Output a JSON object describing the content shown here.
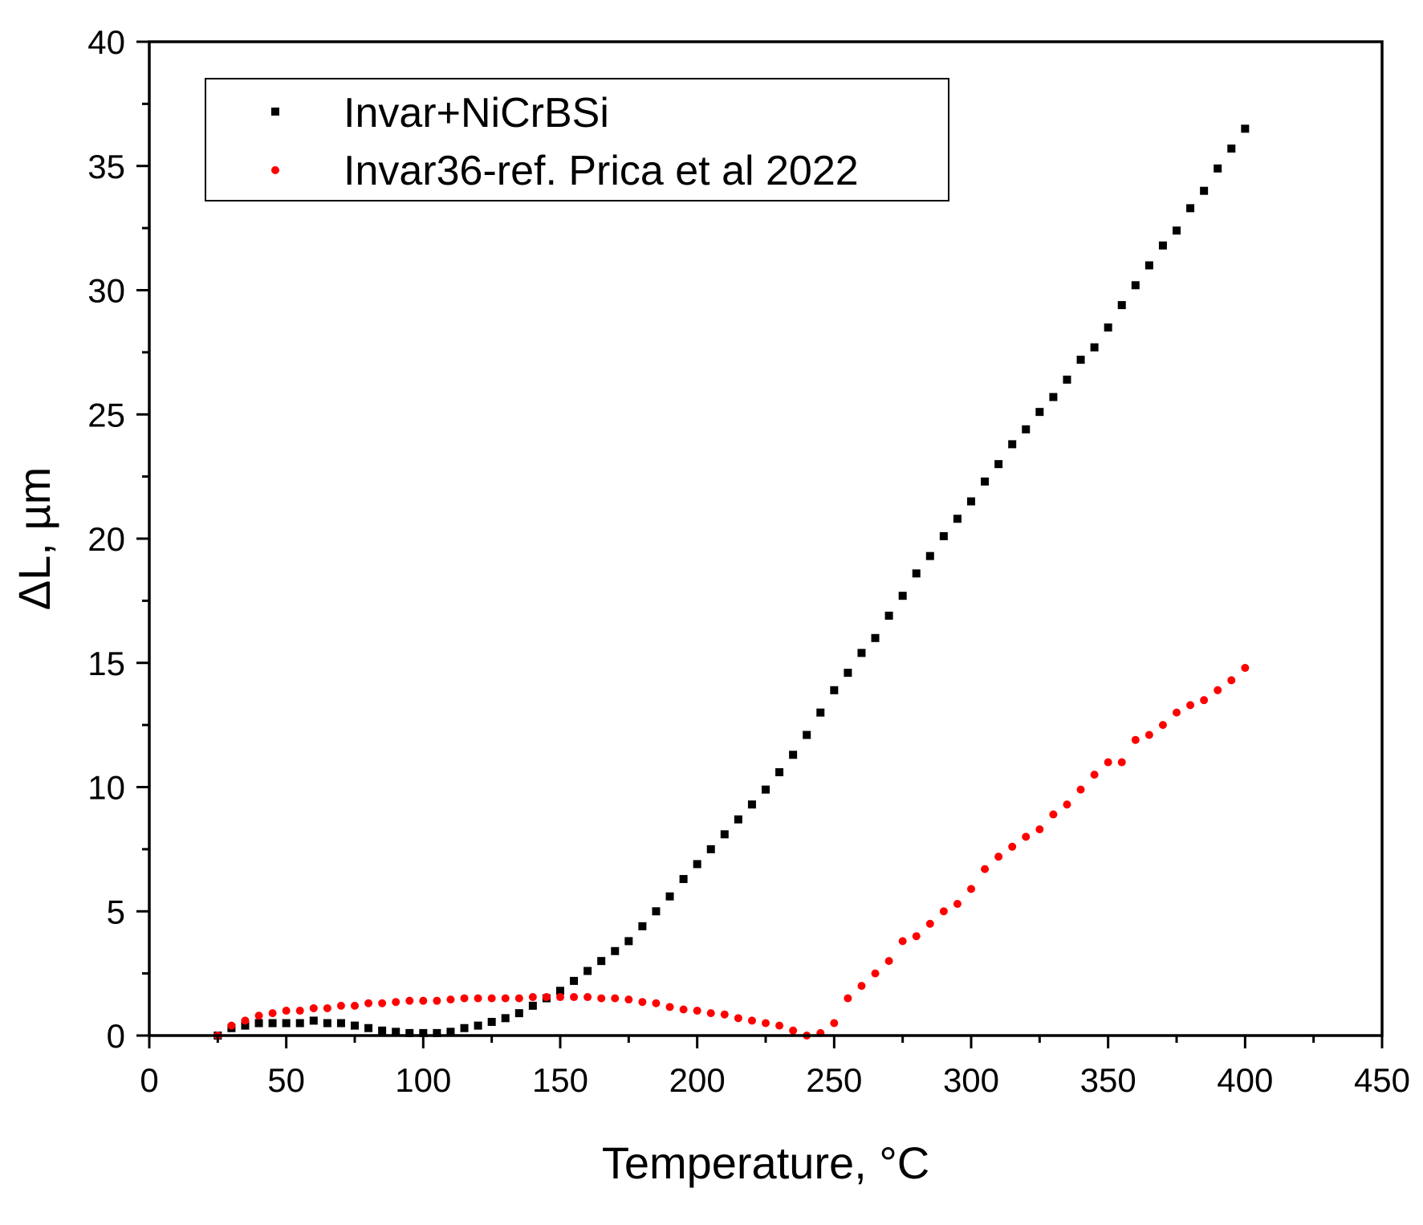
{
  "chart_data": {
    "type": "scatter",
    "title": "",
    "xlabel": "Temperature, °C",
    "ylabel": "ΔL, µm",
    "xlim": [
      0,
      450
    ],
    "ylim": [
      0,
      40
    ],
    "xticks": [
      0,
      50,
      100,
      150,
      200,
      250,
      300,
      350,
      400,
      450
    ],
    "yticks": [
      0,
      5,
      10,
      15,
      20,
      25,
      30,
      35,
      40
    ],
    "xtick_labels": [
      "0",
      "50",
      "100",
      "150",
      "200",
      "250",
      "300",
      "350",
      "400",
      "450"
    ],
    "ytick_labels": [
      "0",
      "5",
      "10",
      "15",
      "20",
      "25",
      "30",
      "35",
      "40"
    ],
    "grid": false,
    "legend_position": "top-left",
    "series": [
      {
        "name": "Invar+NiCrBSi",
        "color": "#000000",
        "marker": "square",
        "x": [
          25,
          30,
          35,
          40,
          45,
          50,
          55,
          60,
          65,
          70,
          75,
          80,
          85,
          90,
          95,
          100,
          105,
          110,
          115,
          120,
          125,
          130,
          135,
          140,
          145,
          150,
          155,
          160,
          165,
          170,
          175,
          180,
          185,
          190,
          195,
          200,
          205,
          210,
          215,
          220,
          225,
          230,
          235,
          240,
          245,
          250,
          255,
          260,
          265,
          270,
          275,
          280,
          285,
          290,
          295,
          300,
          305,
          310,
          315,
          320,
          325,
          330,
          335,
          340,
          345,
          350,
          355,
          360,
          365,
          370,
          375,
          380,
          385,
          390,
          395,
          400
        ],
        "y": [
          0.0,
          0.3,
          0.4,
          0.5,
          0.5,
          0.5,
          0.5,
          0.6,
          0.5,
          0.5,
          0.4,
          0.3,
          0.2,
          0.15,
          0.1,
          0.1,
          0.1,
          0.15,
          0.3,
          0.4,
          0.55,
          0.7,
          0.9,
          1.2,
          1.5,
          1.8,
          2.2,
          2.6,
          3.0,
          3.4,
          3.8,
          4.4,
          5.0,
          5.6,
          6.3,
          6.9,
          7.5,
          8.1,
          8.7,
          9.3,
          9.9,
          10.6,
          11.3,
          12.1,
          13.0,
          13.9,
          14.6,
          15.4,
          16.0,
          16.9,
          17.7,
          18.6,
          19.3,
          20.1,
          20.8,
          21.5,
          22.3,
          23.0,
          23.8,
          24.4,
          25.1,
          25.7,
          26.4,
          27.2,
          27.7,
          28.5,
          29.4,
          30.2,
          31.0,
          31.8,
          32.4,
          33.3,
          34.0,
          34.9,
          35.7,
          36.5
        ]
      },
      {
        "name": "Invar36-ref. Prica et al 2022",
        "color": "#ff0000",
        "marker": "circle",
        "x": [
          25,
          30,
          35,
          40,
          45,
          50,
          55,
          60,
          65,
          70,
          75,
          80,
          85,
          90,
          95,
          100,
          105,
          110,
          115,
          120,
          125,
          130,
          135,
          140,
          145,
          150,
          155,
          160,
          165,
          170,
          175,
          180,
          185,
          190,
          195,
          200,
          205,
          210,
          215,
          220,
          225,
          230,
          235,
          240,
          245,
          250,
          255,
          260,
          265,
          270,
          275,
          280,
          285,
          290,
          295,
          300,
          305,
          310,
          315,
          320,
          325,
          330,
          335,
          340,
          345,
          350,
          355,
          360,
          365,
          370,
          375,
          380,
          385,
          390,
          395,
          400
        ],
        "y": [
          0.0,
          0.4,
          0.6,
          0.8,
          0.9,
          1.0,
          1.0,
          1.1,
          1.1,
          1.2,
          1.2,
          1.3,
          1.3,
          1.35,
          1.4,
          1.4,
          1.4,
          1.45,
          1.5,
          1.5,
          1.5,
          1.5,
          1.5,
          1.55,
          1.55,
          1.55,
          1.55,
          1.55,
          1.5,
          1.5,
          1.45,
          1.35,
          1.3,
          1.15,
          1.05,
          1.0,
          0.9,
          0.85,
          0.7,
          0.6,
          0.5,
          0.4,
          0.2,
          0.0,
          0.1,
          0.5,
          1.5,
          2.0,
          2.5,
          3.0,
          3.8,
          4.0,
          4.5,
          5.0,
          5.3,
          5.9,
          6.7,
          7.2,
          7.6,
          8.0,
          8.3,
          8.9,
          9.3,
          9.9,
          10.5,
          11.0,
          11.0,
          11.9,
          12.1,
          12.5,
          13.0,
          13.3,
          13.5,
          13.9,
          14.3,
          14.8
        ]
      }
    ]
  }
}
